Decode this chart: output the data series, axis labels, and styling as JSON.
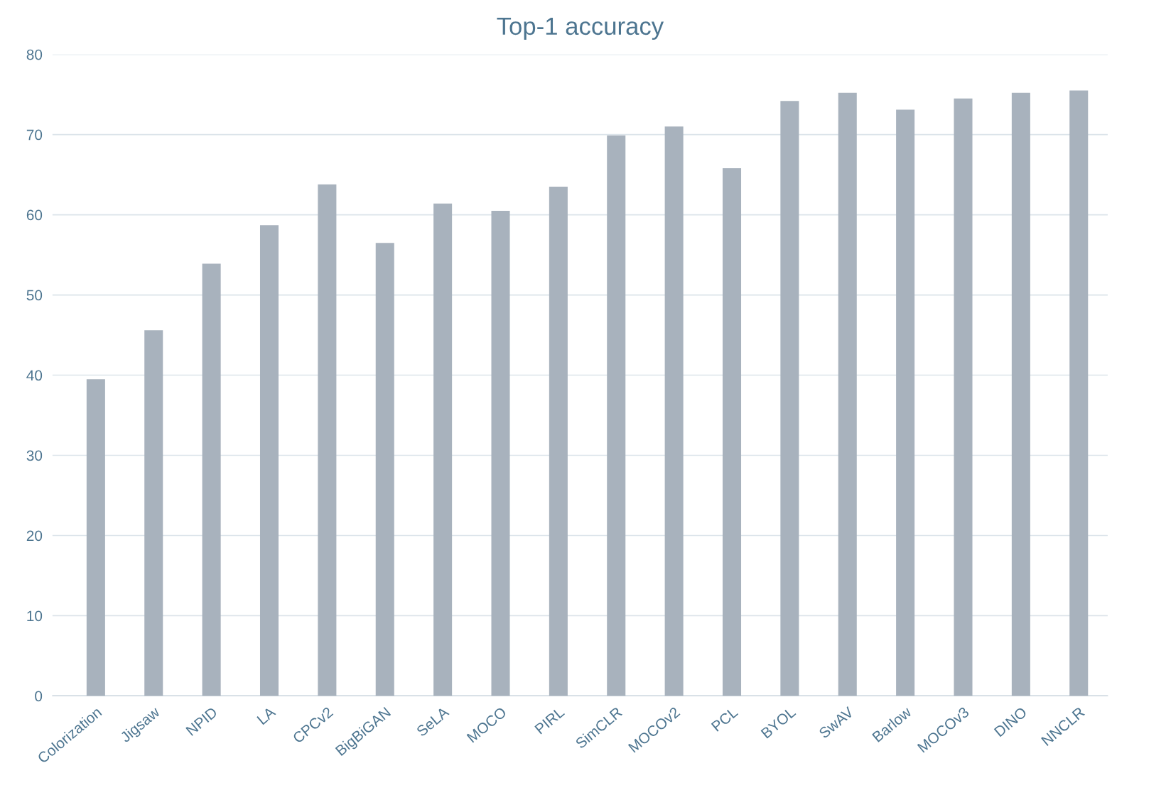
{
  "chart_data": {
    "type": "bar",
    "title": "Top-1 accuracy",
    "categories": [
      "Colorization",
      "Jigsaw",
      "NPID",
      "LA",
      "CPCv2",
      "BigBiGAN",
      "SeLA",
      "MOCO",
      "PIRL",
      "SimCLR",
      "MOCOv2",
      "PCL",
      "BYOL",
      "SwAV",
      "Barlow",
      "MOCOv3",
      "DINO",
      "NNCLR"
    ],
    "values": [
      39.5,
      45.6,
      53.9,
      58.7,
      63.8,
      56.5,
      61.4,
      60.5,
      63.5,
      69.9,
      71.0,
      65.8,
      74.2,
      75.2,
      73.1,
      74.5,
      75.2,
      75.5
    ],
    "color": "#a8b2bd",
    "ylim": [
      0,
      80
    ],
    "yticks": [
      0,
      10,
      20,
      30,
      40,
      50,
      60,
      70,
      80
    ],
    "grid": "y"
  }
}
